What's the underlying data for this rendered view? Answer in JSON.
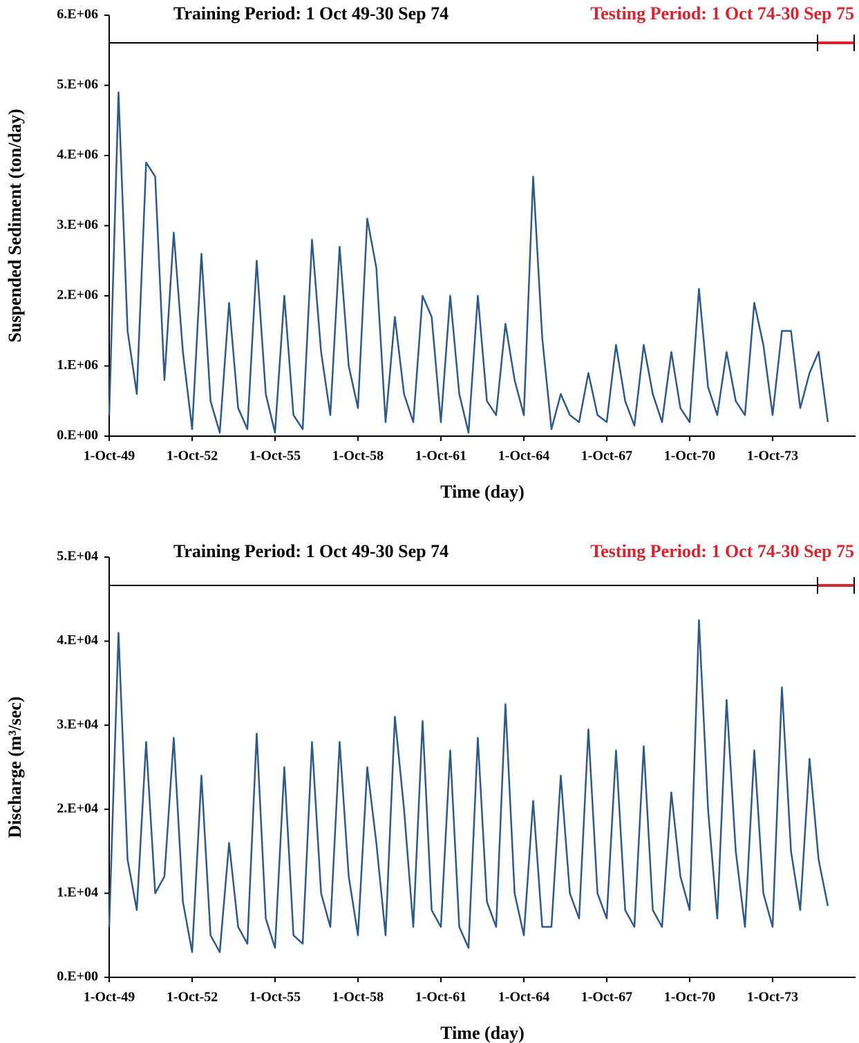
{
  "chart_data": [
    {
      "type": "line",
      "annotations": [
        {
          "text": "Training Period: 1 Oct 49-30 Sep 74",
          "color": "#000000"
        },
        {
          "text": "Testing Period: 1 Oct 74-30 Sep 75",
          "color": "#d9232e"
        }
      ],
      "xlabel": "Time (day)",
      "ylabel": "Suspended Sediment (ton/day)",
      "xlim": [
        "1949-10-01",
        "1976-10-01"
      ],
      "xticks": [
        {
          "value": "1949-10-01",
          "label": "1-Oct-49"
        },
        {
          "value": "1952-10-01",
          "label": "1-Oct-52"
        },
        {
          "value": "1955-10-01",
          "label": "1-Oct-55"
        },
        {
          "value": "1958-10-01",
          "label": "1-Oct-58"
        },
        {
          "value": "1961-10-01",
          "label": "1-Oct-61"
        },
        {
          "value": "1964-10-01",
          "label": "1-Oct-64"
        },
        {
          "value": "1967-10-01",
          "label": "1-Oct-67"
        },
        {
          "value": "1970-10-01",
          "label": "1-Oct-70"
        },
        {
          "value": "1973-10-01",
          "label": "1-Oct-73"
        }
      ],
      "ylim": [
        0,
        6000000
      ],
      "yticks": [
        {
          "value": 0,
          "label": "0.E+00"
        },
        {
          "value": 1000000,
          "label": "1.E+06"
        },
        {
          "value": 2000000,
          "label": "2.E+06"
        },
        {
          "value": 3000000,
          "label": "3.E+06"
        },
        {
          "value": 4000000,
          "label": "4.E+06"
        },
        {
          "value": 5000000,
          "label": "5.E+06"
        },
        {
          "value": 6000000,
          "label": "6.E+06"
        }
      ],
      "x": [
        "1949-10-01",
        "1950-02-01",
        "1950-06-01",
        "1950-10-01",
        "1951-02-01",
        "1951-06-01",
        "1951-10-01",
        "1952-02-01",
        "1952-06-01",
        "1952-10-01",
        "1953-02-01",
        "1953-06-01",
        "1953-10-01",
        "1954-02-01",
        "1954-06-01",
        "1954-10-01",
        "1955-02-01",
        "1955-06-01",
        "1955-10-01",
        "1956-02-01",
        "1956-06-01",
        "1956-10-01",
        "1957-02-01",
        "1957-06-01",
        "1957-10-01",
        "1958-02-01",
        "1958-06-01",
        "1958-10-01",
        "1959-02-01",
        "1959-06-01",
        "1959-10-01",
        "1960-02-01",
        "1960-06-01",
        "1960-10-01",
        "1961-02-01",
        "1961-06-01",
        "1961-10-01",
        "1962-02-01",
        "1962-06-01",
        "1962-10-01",
        "1963-02-01",
        "1963-06-01",
        "1963-10-01",
        "1964-02-01",
        "1964-06-01",
        "1964-10-01",
        "1965-02-01",
        "1965-06-01",
        "1965-10-01",
        "1966-02-01",
        "1966-06-01",
        "1966-10-01",
        "1967-02-01",
        "1967-06-01",
        "1967-10-01",
        "1968-02-01",
        "1968-06-01",
        "1968-10-01",
        "1969-02-01",
        "1969-06-01",
        "1969-10-01",
        "1970-02-01",
        "1970-06-01",
        "1970-10-01",
        "1971-02-01",
        "1971-06-01",
        "1971-10-01",
        "1972-02-01",
        "1972-06-01",
        "1972-10-01",
        "1973-02-01",
        "1973-06-01",
        "1973-10-01",
        "1974-02-01",
        "1974-06-01",
        "1974-10-01",
        "1975-02-01",
        "1975-06-01",
        "1975-10-01"
      ],
      "series": [
        {
          "color": "#2e5a8a",
          "values": [
            300000,
            4900000,
            1500000,
            600000,
            3900000,
            3700000,
            800000,
            2900000,
            1200000,
            100000,
            2600000,
            500000,
            50000,
            1900000,
            400000,
            100000,
            2500000,
            600000,
            50000,
            2000000,
            300000,
            100000,
            2800000,
            1200000,
            300000,
            2700000,
            1000000,
            400000,
            3100000,
            2400000,
            200000,
            1700000,
            600000,
            200000,
            2000000,
            1700000,
            200000,
            2000000,
            600000,
            50000,
            2000000,
            500000,
            300000,
            1600000,
            800000,
            300000,
            3700000,
            1400000,
            100000,
            600000,
            300000,
            200000,
            900000,
            300000,
            200000,
            1300000,
            500000,
            150000,
            1300000,
            600000,
            200000,
            1200000,
            400000,
            200000,
            2100000,
            700000,
            300000,
            1200000,
            500000,
            300000,
            1900000,
            1300000,
            300000,
            1500000,
            1500000,
            400000,
            900000,
            1200000,
            200000
          ]
        }
      ]
    },
    {
      "type": "line",
      "annotations": [
        {
          "text": "Training Period: 1 Oct 49-30 Sep 74",
          "color": "#000000"
        },
        {
          "text": "Testing Period: 1 Oct 74-30 Sep 75",
          "color": "#d9232e"
        }
      ],
      "xlabel": "Time (day)",
      "ylabel": "Discharge (m³/sec)",
      "xlim": [
        "1949-10-01",
        "1976-10-01"
      ],
      "xticks": [
        {
          "value": "1949-10-01",
          "label": "1-Oct-49"
        },
        {
          "value": "1952-10-01",
          "label": "1-Oct-52"
        },
        {
          "value": "1955-10-01",
          "label": "1-Oct-55"
        },
        {
          "value": "1958-10-01",
          "label": "1-Oct-58"
        },
        {
          "value": "1961-10-01",
          "label": "1-Oct-61"
        },
        {
          "value": "1964-10-01",
          "label": "1-Oct-64"
        },
        {
          "value": "1967-10-01",
          "label": "1-Oct-67"
        },
        {
          "value": "1970-10-01",
          "label": "1-Oct-70"
        },
        {
          "value": "1973-10-01",
          "label": "1-Oct-73"
        }
      ],
      "ylim": [
        0,
        50000
      ],
      "yticks": [
        {
          "value": 0,
          "label": "0.E+00"
        },
        {
          "value": 10000,
          "label": "1.E+04"
        },
        {
          "value": 20000,
          "label": "2.E+04"
        },
        {
          "value": 30000,
          "label": "3.E+04"
        },
        {
          "value": 40000,
          "label": "4.E+04"
        },
        {
          "value": 50000,
          "label": "5.E+04"
        }
      ],
      "x": [
        "1949-10-01",
        "1950-02-01",
        "1950-06-01",
        "1950-10-01",
        "1951-02-01",
        "1951-06-01",
        "1951-10-01",
        "1952-02-01",
        "1952-06-01",
        "1952-10-01",
        "1953-02-01",
        "1953-06-01",
        "1953-10-01",
        "1954-02-01",
        "1954-06-01",
        "1954-10-01",
        "1955-02-01",
        "1955-06-01",
        "1955-10-01",
        "1956-02-01",
        "1956-06-01",
        "1956-10-01",
        "1957-02-01",
        "1957-06-01",
        "1957-10-01",
        "1958-02-01",
        "1958-06-01",
        "1958-10-01",
        "1959-02-01",
        "1959-06-01",
        "1959-10-01",
        "1960-02-01",
        "1960-06-01",
        "1960-10-01",
        "1961-02-01",
        "1961-06-01",
        "1961-10-01",
        "1962-02-01",
        "1962-06-01",
        "1962-10-01",
        "1963-02-01",
        "1963-06-01",
        "1963-10-01",
        "1964-02-01",
        "1964-06-01",
        "1964-10-01",
        "1965-02-01",
        "1965-06-01",
        "1965-10-01",
        "1966-02-01",
        "1966-06-01",
        "1966-10-01",
        "1967-02-01",
        "1967-06-01",
        "1967-10-01",
        "1968-02-01",
        "1968-06-01",
        "1968-10-01",
        "1969-02-01",
        "1969-06-01",
        "1969-10-01",
        "1970-02-01",
        "1970-06-01",
        "1970-10-01",
        "1971-02-01",
        "1971-06-01",
        "1971-10-01",
        "1972-02-01",
        "1972-06-01",
        "1972-10-01",
        "1973-02-01",
        "1973-06-01",
        "1973-10-01",
        "1974-02-01",
        "1974-06-01",
        "1974-10-01",
        "1975-02-01",
        "1975-06-01",
        "1975-10-01"
      ],
      "series": [
        {
          "color": "#2e5a8a",
          "values": [
            6000,
            41000,
            14000,
            8000,
            28000,
            10000,
            12000,
            28500,
            9000,
            3000,
            24000,
            5000,
            3000,
            16000,
            6000,
            4000,
            29000,
            7000,
            3500,
            25000,
            5000,
            4000,
            28000,
            10000,
            6000,
            28000,
            12000,
            5000,
            25000,
            16000,
            5000,
            31000,
            20000,
            6000,
            30500,
            8000,
            6000,
            27000,
            6000,
            3500,
            28500,
            9000,
            6000,
            32500,
            10000,
            5000,
            21000,
            6000,
            6000,
            24000,
            10000,
            7000,
            29500,
            10000,
            7000,
            27000,
            8000,
            6000,
            27500,
            8000,
            6000,
            22000,
            12000,
            8000,
            42500,
            20000,
            7000,
            33000,
            15000,
            6000,
            27000,
            10000,
            6000,
            34500,
            15000,
            8000,
            26000,
            14000,
            8500
          ]
        }
      ]
    }
  ]
}
